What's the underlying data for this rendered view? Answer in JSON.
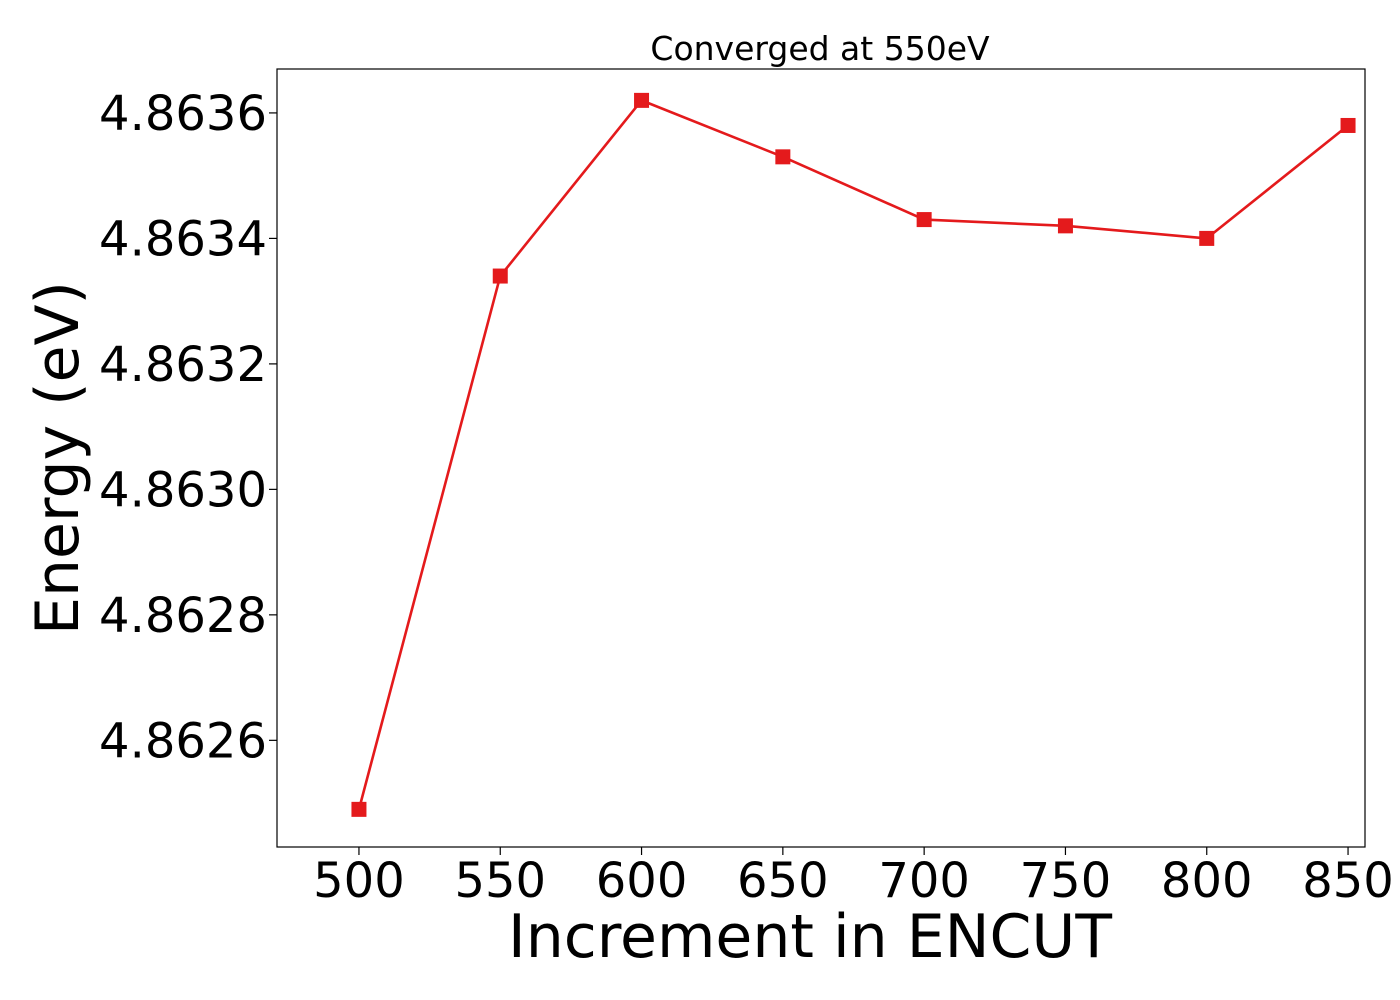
{
  "chart_data": {
    "type": "line",
    "title": "Converged at 550eV",
    "xlabel": "Increment in ENCUT",
    "ylabel": "Energy (eV)",
    "x": [
      500,
      550,
      600,
      650,
      700,
      750,
      800,
      850
    ],
    "xticks": [
      "500",
      "550",
      "600",
      "650",
      "700",
      "750",
      "800",
      "850"
    ],
    "yticks": [
      "4.8626",
      "4.8628",
      "4.8630",
      "4.8632",
      "4.8634",
      "4.8636"
    ],
    "xlim": [
      471,
      856
    ],
    "ylim": [
      4.86243,
      4.86367
    ],
    "grid": false,
    "series": [
      {
        "color": "#e41a1c",
        "marker": "square",
        "values": [
          4.86249,
          4.86334,
          4.86362,
          4.86353,
          4.86343,
          4.86342,
          4.8634,
          4.86358
        ]
      }
    ]
  }
}
